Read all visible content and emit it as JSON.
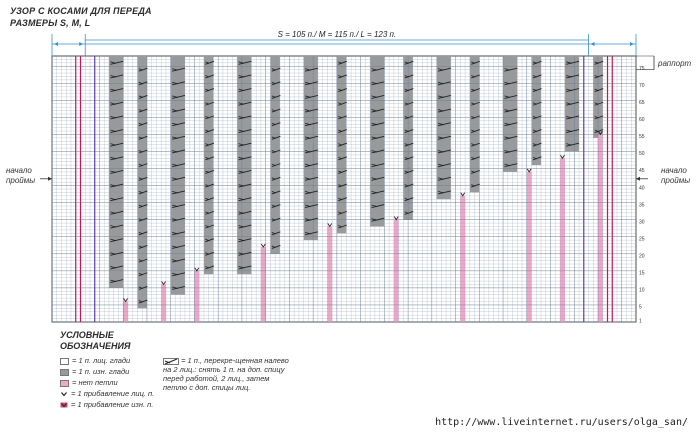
{
  "header": {
    "title_line1": "УЗОР С КОСАМИ ДЛЯ ПЕРЕДА",
    "title_line2": "РАЗМЕРЫ S, M, L"
  },
  "chart": {
    "stitch_count_label": "S = 105 п./ M = 115 п./ L = 123 п.",
    "rapport_label": "раппорт",
    "armhole_left": "начало\nпроймы",
    "armhole_right": "начало\nпроймы",
    "row_numbers": [
      "1",
      "5",
      "10",
      "15",
      "20",
      "25",
      "30",
      "35",
      "40",
      "45",
      "50",
      "55",
      "60",
      "65",
      "70",
      "75"
    ],
    "colors": {
      "grid": "#8a9ab0",
      "purl": "#9a9a9a",
      "no_stitch": "#f2a6c8",
      "edge_pink": "#c2185b",
      "edge_purple": "#5c3fa8",
      "bracket": "#3a8fd0"
    }
  },
  "legend": {
    "title_line1": "УСЛОВНЫЕ",
    "title_line2": "ОБОЗНАЧЕНИЯ",
    "items": [
      {
        "icon": "white-square-icon",
        "text": "= 1 п. лиц. глади"
      },
      {
        "icon": "gray-square-icon",
        "text": "= 1 п. изн. глади"
      },
      {
        "icon": "pink-square-icon",
        "text": "= нет петли"
      },
      {
        "icon": "increase-knit-icon",
        "text": "= 1 прибавление лиц. п."
      },
      {
        "icon": "increase-purl-icon",
        "text": "= 1 прибавление изн. п."
      }
    ],
    "cable_text": "= 1 п., перекре-щенная налево на 2 лиц.: снять 1 п. на доп. спицу перед работой, 2 лиц., затем петлю с доп. спицы лиц."
  },
  "footer": {
    "url": "http://www.liveinternet.ru/users/olga_san/"
  }
}
